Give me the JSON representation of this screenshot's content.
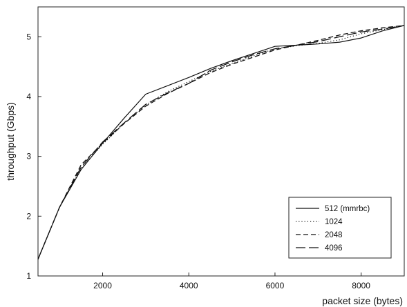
{
  "chart_data": {
    "type": "line",
    "title": "",
    "xlabel": "packet size (bytes)",
    "ylabel": "throughput (Gbps)",
    "xlim": [
      500,
      9000
    ],
    "ylim": [
      1,
      5.5
    ],
    "xticks": [
      2000,
      4000,
      6000,
      8000
    ],
    "yticks": [
      1,
      2,
      3,
      4,
      5
    ],
    "grid": false,
    "legend_position": "bottom-right",
    "series": [
      {
        "name": "512 (mmrbc)",
        "dash": "solid",
        "x": [
          500,
          1000,
          1500,
          2000,
          2500,
          3000,
          3500,
          4000,
          4500,
          5000,
          5500,
          6000,
          6500,
          7000,
          7500,
          8000,
          8500,
          9000
        ],
        "y": [
          1.28,
          2.15,
          2.78,
          3.22,
          3.64,
          4.04,
          4.18,
          4.32,
          4.47,
          4.6,
          4.72,
          4.84,
          4.86,
          4.88,
          4.91,
          4.98,
          5.1,
          5.19
        ]
      },
      {
        "name": "1024",
        "dash": "dotted",
        "x": [
          500,
          1000,
          1500,
          2000,
          2500,
          3000,
          3500,
          4000,
          4500,
          5000,
          5500,
          6000,
          6500,
          7000,
          7500,
          8000,
          8500,
          9000
        ],
        "y": [
          1.28,
          2.15,
          2.8,
          3.2,
          3.55,
          3.86,
          4.08,
          4.25,
          4.42,
          4.55,
          4.68,
          4.8,
          4.85,
          4.89,
          4.95,
          5.05,
          5.12,
          5.19
        ]
      },
      {
        "name": "2048",
        "dash": "dashed",
        "x": [
          500,
          1000,
          1500,
          2000,
          2500,
          3000,
          3500,
          4000,
          4500,
          5000,
          5500,
          6000,
          6500,
          7000,
          7500,
          8000,
          8500,
          9000
        ],
        "y": [
          1.28,
          2.15,
          2.86,
          3.22,
          3.55,
          3.84,
          4.05,
          4.22,
          4.4,
          4.54,
          4.66,
          4.78,
          4.86,
          4.94,
          5.03,
          5.1,
          5.15,
          5.19
        ]
      },
      {
        "name": "4096",
        "dash": "longdash",
        "x": [
          500,
          1000,
          1500,
          2000,
          2500,
          3000,
          3500,
          4000,
          4500,
          5000,
          5500,
          6000,
          6500,
          7000,
          7500,
          8000,
          8500,
          9000
        ],
        "y": [
          1.28,
          2.15,
          2.82,
          3.24,
          3.56,
          3.87,
          4.06,
          4.22,
          4.44,
          4.58,
          4.7,
          4.8,
          4.86,
          4.92,
          5.0,
          5.08,
          5.13,
          5.19
        ]
      }
    ]
  }
}
